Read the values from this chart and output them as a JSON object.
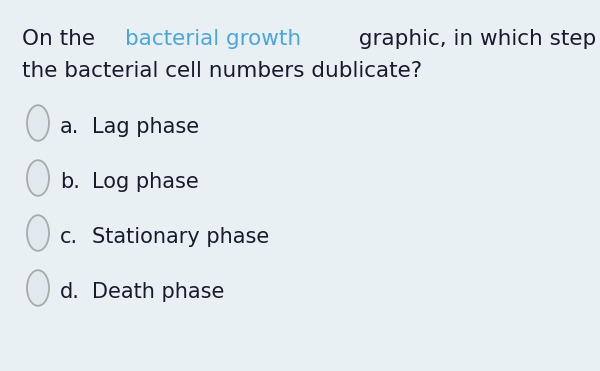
{
  "background_color": "#e8f0f3",
  "highlight_color": "#4da6d9",
  "text_color": "#1a1a2e",
  "circle_edge_color": "#aaaaaa",
  "circle_fill_color": "#e0eaee",
  "font_size_question": 15.5,
  "font_size_options": 15,
  "question_parts": [
    {
      "text": "On the ",
      "color": "#1a1a2e",
      "bold": false
    },
    {
      "text": "bacterial growth",
      "color": "#4da6d9",
      "bold": false
    },
    {
      "text": " graphic, in which step",
      "color": "#1a1a2e",
      "bold": false
    }
  ],
  "question_line2": "the bacterial cell numbers dublicate?",
  "options": [
    {
      "label": "a.",
      "text": "Lag phase"
    },
    {
      "label": "b.",
      "text": "Log phase"
    },
    {
      "label": "c.",
      "text": "Stationary phase"
    },
    {
      "label": "d.",
      "text": "Death phase"
    }
  ]
}
